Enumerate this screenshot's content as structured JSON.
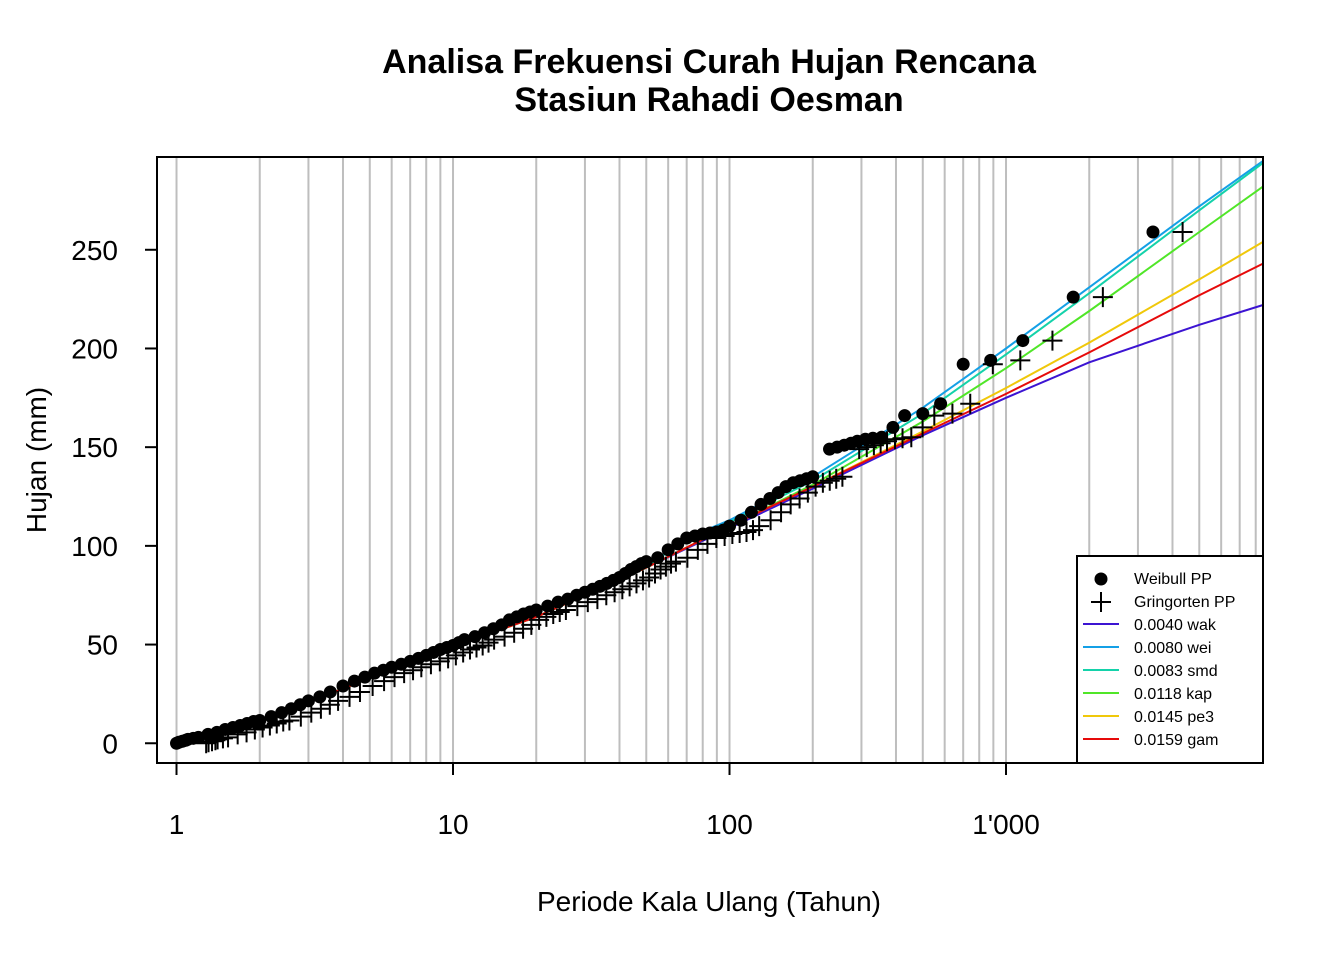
{
  "chart_data": {
    "type": "line",
    "title": "Analisa Frekuensi Curah Hujan Rencana",
    "subtitle": "Stasiun Rahadi Oesman",
    "xlabel": "Periode Kala Ulang (Tahun)",
    "ylabel": "Hujan (mm)",
    "x_scale": "log",
    "xlim": [
      0.85,
      8500
    ],
    "ylim": [
      -10,
      297
    ],
    "x_ticks": [
      1,
      10,
      100,
      1000
    ],
    "x_tick_labels": [
      "1",
      "10",
      "100",
      "1'000"
    ],
    "y_ticks": [
      0,
      50,
      100,
      150,
      200,
      250
    ],
    "y_tick_labels": [
      "0",
      "50",
      "100",
      "150",
      "200",
      "250"
    ],
    "grid": "vertical",
    "legend_position": "bottom-right",
    "colors": {
      "points": "#000000",
      "grid": "#bebebe",
      "wak": "#3c14d2",
      "wei": "#14a0e6",
      "smd": "#14d2aa",
      "kap": "#50e628",
      "pe3": "#f0c80a",
      "gam": "#e60a0a"
    },
    "series": [
      {
        "name": "0.0040 wak",
        "kind": "line",
        "color": "#3c14d2",
        "x": [
          1,
          2,
          5,
          10,
          20,
          50,
          100,
          200,
          500,
          1000,
          2000,
          5000,
          8500
        ],
        "y": [
          0,
          11,
          33,
          49,
          64,
          89,
          109,
          129,
          156,
          175,
          193,
          212,
          222
        ]
      },
      {
        "name": "0.0080 wei",
        "kind": "line",
        "color": "#14a0e6",
        "x": [
          1,
          2,
          5,
          10,
          20,
          50,
          70,
          100,
          200,
          500,
          1000,
          2000,
          5000,
          8500
        ],
        "y": [
          0,
          11,
          33,
          49,
          64,
          89,
          104,
          113,
          135,
          170,
          200,
          231,
          272,
          295
        ]
      },
      {
        "name": "0.0083 smd",
        "kind": "line",
        "color": "#14d2aa",
        "x": [
          1,
          2,
          5,
          10,
          20,
          50,
          70,
          100,
          200,
          500,
          1000,
          2000,
          5000,
          8500
        ],
        "y": [
          0,
          11,
          33,
          49,
          64,
          89,
          104,
          112,
          133,
          167,
          197,
          228,
          270,
          294
        ]
      },
      {
        "name": "0.0118 kap",
        "kind": "line",
        "color": "#50e628",
        "x": [
          1,
          2,
          5,
          10,
          20,
          50,
          100,
          200,
          500,
          1000,
          2000,
          5000,
          8500
        ],
        "y": [
          0,
          11,
          33,
          49,
          64,
          89,
          110,
          131,
          163,
          190,
          219,
          259,
          282
        ]
      },
      {
        "name": "0.0145 pe3",
        "kind": "line",
        "color": "#f0c80a",
        "x": [
          1,
          2,
          5,
          10,
          20,
          50,
          100,
          200,
          500,
          1000,
          2000,
          5000,
          8500
        ],
        "y": [
          0,
          11,
          33,
          49,
          64,
          89,
          110,
          130,
          158,
          180,
          203,
          235,
          254
        ]
      },
      {
        "name": "0.0159 gam",
        "kind": "line",
        "color": "#e60a0a",
        "x": [
          1,
          2,
          5,
          10,
          20,
          50,
          100,
          200,
          500,
          1000,
          2000,
          5000,
          8500
        ],
        "y": [
          0,
          11,
          33,
          49,
          64,
          89,
          110,
          130,
          157,
          177,
          198,
          227,
          243
        ]
      },
      {
        "name": "Weibull PP",
        "kind": "points",
        "marker": "dot",
        "x": [
          1,
          1.02,
          1.05,
          1.08,
          1.1,
          1.15,
          1.2,
          1.3,
          1.4,
          1.5,
          1.6,
          1.7,
          1.8,
          1.9,
          2,
          2.2,
          2.4,
          2.6,
          2.8,
          3,
          3.3,
          3.6,
          4,
          4.4,
          4.8,
          5.2,
          5.6,
          6,
          6.5,
          7,
          7.5,
          8,
          8.5,
          9,
          9.5,
          10,
          10.5,
          11,
          12,
          13,
          14,
          15,
          16,
          17,
          18,
          19,
          20,
          22,
          24,
          26,
          28,
          30,
          32,
          34,
          36,
          38,
          40,
          42,
          44,
          46,
          48,
          50,
          55,
          60,
          65,
          70,
          75,
          80,
          85,
          90,
          95,
          100,
          110,
          120,
          130,
          140,
          150,
          160,
          170,
          180,
          190,
          200,
          230,
          245,
          260,
          275,
          290,
          310,
          330,
          355,
          390,
          430,
          500,
          580,
          700,
          880,
          1150,
          1750,
          3400
        ],
        "y": [
          0,
          0.5,
          1,
          1.5,
          2,
          2.5,
          3,
          4.5,
          5.5,
          7,
          8,
          9,
          10,
          11,
          11.5,
          13.5,
          15.5,
          17.5,
          19.5,
          21.5,
          23.5,
          26,
          29,
          31.5,
          33.5,
          35.5,
          37,
          38.5,
          40,
          41.5,
          43,
          44.5,
          46,
          47.5,
          48.5,
          49.5,
          51,
          52.5,
          54,
          56,
          58,
          60,
          62.5,
          64,
          65.5,
          66.5,
          67.5,
          69.5,
          71.5,
          73,
          75,
          76.5,
          78,
          79.5,
          81,
          82.5,
          84,
          86,
          88,
          89.5,
          91,
          92,
          94,
          98,
          101,
          104,
          105,
          106,
          106.5,
          107,
          108,
          110,
          113,
          117,
          121,
          124,
          127,
          130,
          132,
          133,
          134,
          135,
          149,
          150,
          151,
          152,
          153,
          154,
          154.5,
          155,
          160,
          166,
          167,
          172,
          192,
          194,
          204,
          226,
          259
        ]
      },
      {
        "name": "Gringorten PP",
        "kind": "points",
        "marker": "plus",
        "x": [
          1,
          1.02,
          1.05,
          1.08,
          1.1,
          1.15,
          1.2,
          1.3,
          1.4,
          1.5,
          1.6,
          1.7,
          1.8,
          1.9,
          2,
          2.2,
          2.4,
          2.6,
          2.8,
          3,
          3.3,
          3.6,
          4,
          4.4,
          4.8,
          5.2,
          5.6,
          6,
          6.5,
          7,
          7.5,
          8,
          8.5,
          9,
          9.5,
          10,
          10.5,
          11,
          12,
          13,
          14,
          15,
          16,
          17,
          18,
          19,
          20,
          22,
          24,
          26,
          28,
          30,
          32,
          34,
          36,
          38,
          40,
          42,
          44,
          46,
          48,
          50,
          55,
          60,
          65,
          70,
          75,
          80,
          85,
          90,
          95,
          100,
          110,
          120,
          130,
          140,
          150,
          160,
          170,
          180,
          190,
          200,
          230,
          245,
          260,
          275,
          290,
          310,
          330,
          355,
          390,
          430,
          500,
          580,
          700,
          880,
          1150,
          1750,
          3400
        ],
        "y": [
          0,
          0.5,
          1,
          1.5,
          2,
          2.5,
          3,
          4.5,
          5.5,
          7,
          8,
          9,
          10,
          11,
          11.5,
          13.5,
          15.5,
          17.5,
          19.5,
          21.5,
          23.5,
          26,
          29,
          31.5,
          33.5,
          35.5,
          37,
          38.5,
          40,
          41.5,
          43,
          44.5,
          46,
          47.5,
          48.5,
          49.5,
          51,
          52.5,
          54,
          56,
          58,
          60,
          62.5,
          64,
          65.5,
          66.5,
          67.5,
          69.5,
          71.5,
          73,
          75,
          76.5,
          78,
          79.5,
          81,
          82.5,
          84,
          86,
          88,
          89.5,
          91,
          92,
          94,
          98,
          101,
          104,
          105,
          106,
          106.5,
          107,
          108,
          110,
          113,
          117,
          121,
          124,
          127,
          130,
          132,
          133,
          134,
          135,
          149,
          150,
          151,
          152,
          153,
          154,
          154.5,
          155,
          160,
          166,
          167,
          172,
          192,
          194,
          204,
          226,
          259
        ],
        "x_offset_factor": 1.28
      }
    ],
    "legend": [
      {
        "label": "Weibull PP",
        "kind": "dot",
        "color": "#000000"
      },
      {
        "label": "Gringorten PP",
        "kind": "plus",
        "color": "#000000"
      },
      {
        "label": "0.0040 wak",
        "kind": "line",
        "color": "#3c14d2"
      },
      {
        "label": "0.0080 wei",
        "kind": "line",
        "color": "#14a0e6"
      },
      {
        "label": "0.0083 smd",
        "kind": "line",
        "color": "#14d2aa"
      },
      {
        "label": "0.0118 kap",
        "kind": "line",
        "color": "#50e628"
      },
      {
        "label": "0.0145 pe3",
        "kind": "line",
        "color": "#f0c80a"
      },
      {
        "label": "0.0159 gam",
        "kind": "line",
        "color": "#e60a0a"
      }
    ]
  }
}
